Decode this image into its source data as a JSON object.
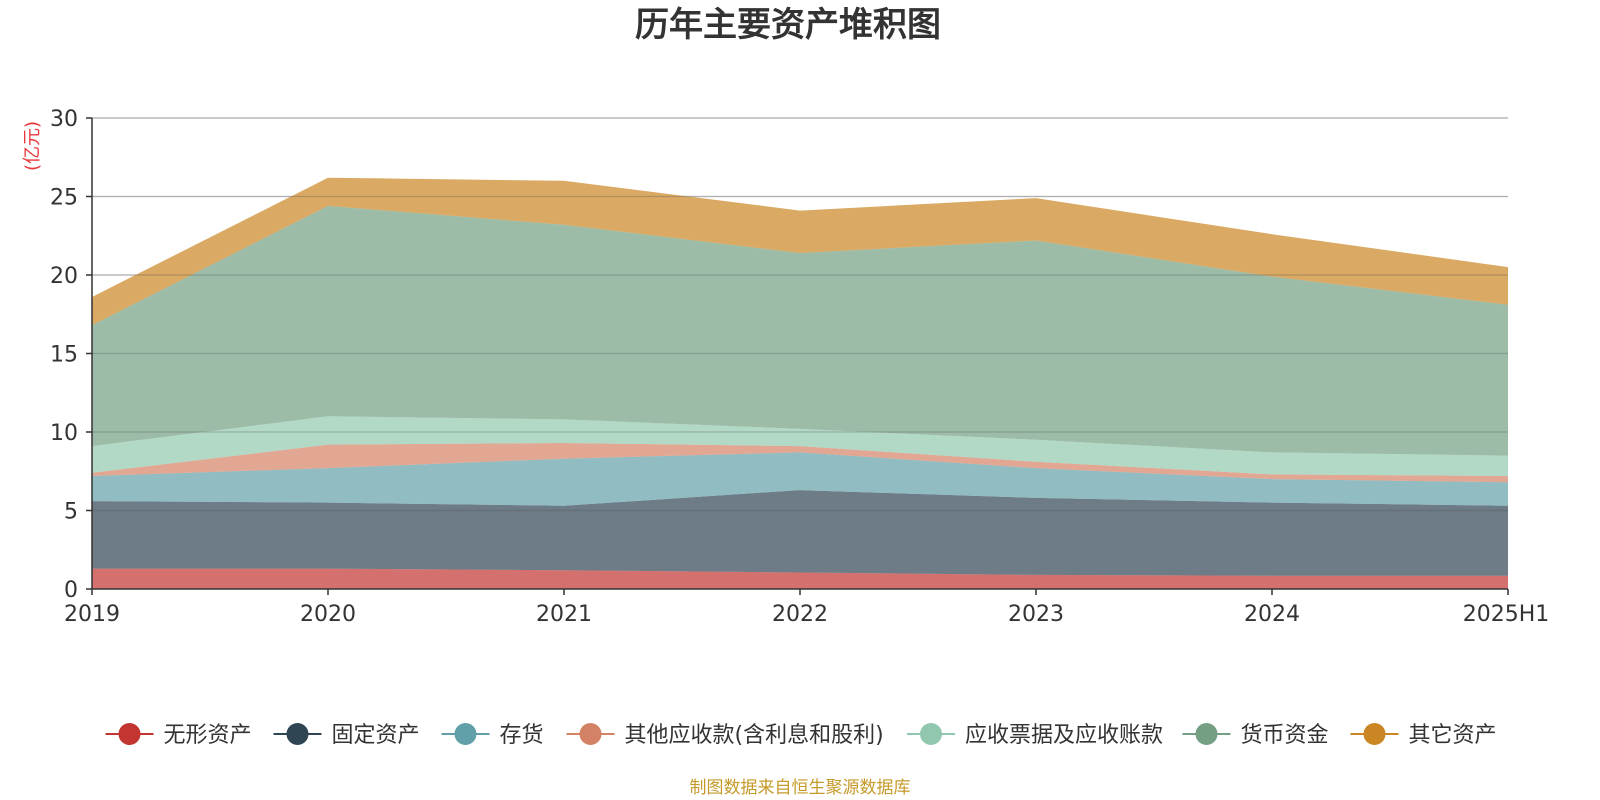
{
  "chart_data": {
    "type": "area",
    "stacked": true,
    "title": "历年主要资产堆积图",
    "unit_label": "(亿元)",
    "x": [
      "2019",
      "2020",
      "2021",
      "2022",
      "2023",
      "2024",
      "2025H1"
    ],
    "ylim": [
      0,
      30
    ],
    "yticks": [
      "0",
      "5",
      "10",
      "15",
      "20",
      "25",
      "30"
    ],
    "grid": true,
    "legend_position": "bottom",
    "series": [
      {
        "name": "无形资产",
        "color": "#c23531",
        "values": [
          1.3,
          1.3,
          1.2,
          1.05,
          0.9,
          0.85,
          0.85
        ]
      },
      {
        "name": "固定资产",
        "color": "#2f4554",
        "values": [
          4.3,
          4.2,
          4.1,
          5.25,
          4.9,
          4.65,
          4.45
        ]
      },
      {
        "name": "存货",
        "color": "#61a0a8",
        "values": [
          1.6,
          2.2,
          3.0,
          2.4,
          1.9,
          1.5,
          1.5
        ]
      },
      {
        "name": "其他应收款(含利息和股利)",
        "color": "#d48265",
        "values": [
          0.2,
          1.5,
          1.0,
          0.4,
          0.4,
          0.3,
          0.4
        ]
      },
      {
        "name": "应收票据及应收账款",
        "color": "#91c7ae",
        "values": [
          1.7,
          1.8,
          1.5,
          1.1,
          1.4,
          1.4,
          1.3
        ]
      },
      {
        "name": "货币资金",
        "color": "#749f83",
        "values": [
          7.7,
          13.4,
          12.4,
          11.2,
          12.7,
          11.2,
          9.6
        ]
      },
      {
        "name": "其它资产",
        "color": "#ca8622",
        "values": [
          1.8,
          1.8,
          2.8,
          2.7,
          2.7,
          2.7,
          2.4
        ]
      }
    ],
    "source_note": "制图数据来自恒生聚源数据库"
  }
}
